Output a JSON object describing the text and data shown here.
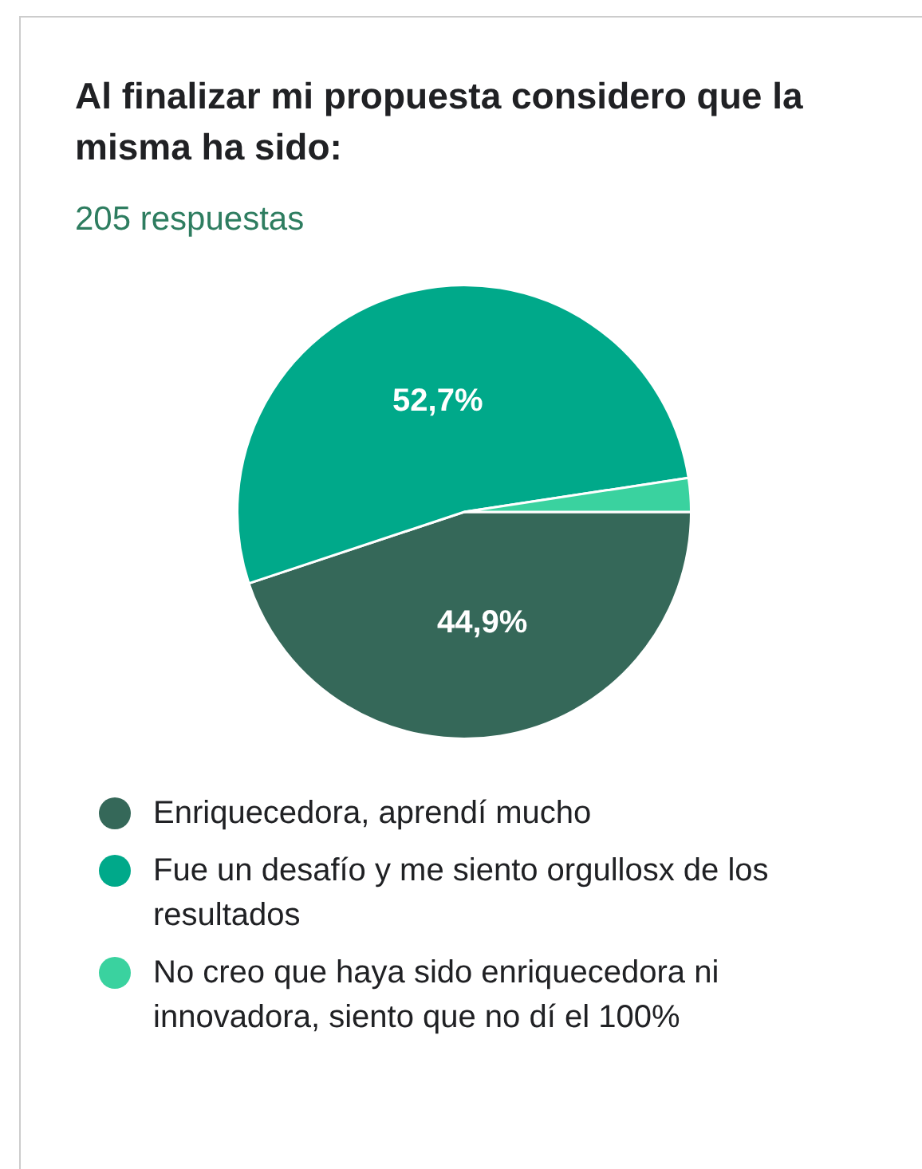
{
  "chart_data": {
    "type": "pie",
    "title": "Al finalizar mi propuesta considero que la misma ha sido:",
    "subtitle": "205 respuestas",
    "categories": [
      "Enriquecedora, aprendí mucho",
      "Fue un desafío y me siento orgullosx de los resultados",
      "No creo que haya sido enriquecedora ni innovadora, siento que no dí el 100%"
    ],
    "values": [
      44.9,
      52.7,
      2.4
    ],
    "colors": [
      "#356859",
      "#00a98a",
      "#3ad29f"
    ],
    "value_labels": [
      "44,9%",
      "52,7%",
      null
    ],
    "legend": "bottom"
  }
}
